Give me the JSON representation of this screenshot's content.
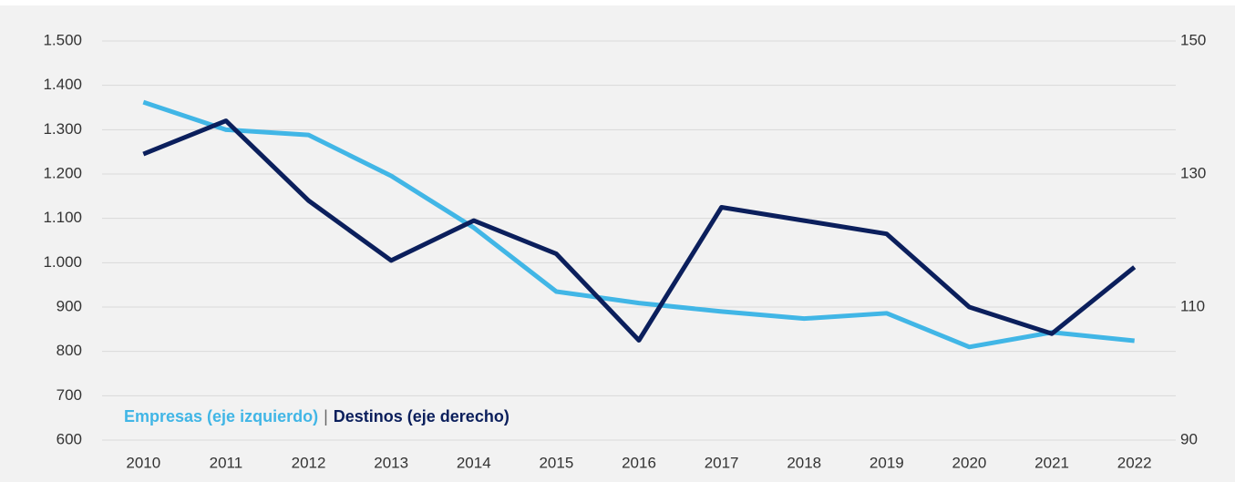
{
  "chart_data": {
    "type": "line",
    "categories": [
      "2010",
      "2011",
      "2012",
      "2013",
      "2014",
      "2015",
      "2016",
      "2017",
      "2018",
      "2019",
      "2020",
      "2021",
      "2022"
    ],
    "series": [
      {
        "name": "Empresas (eje izquierdo)",
        "color": "#41b6e6",
        "axis": "y",
        "values": [
          1362,
          1300,
          1288,
          1196,
          1079,
          935,
          909,
          890,
          874,
          886,
          810,
          843,
          824
        ]
      },
      {
        "name": "Destinos (eje derecho)",
        "color": "#0b1f5c",
        "axis": "y2",
        "values": [
          133,
          138,
          126,
          117,
          123,
          118,
          105,
          125,
          123,
          121,
          110,
          106,
          116
        ]
      }
    ],
    "legend_separator": "|",
    "ylim": [
      600,
      1500
    ],
    "yticks": [
      600,
      700,
      800,
      900,
      {
        "value": 1000,
        "label": "1.000"
      },
      {
        "value": 1100,
        "label": "1.100"
      },
      {
        "value": 1200,
        "label": "1.200"
      },
      {
        "value": 1300,
        "label": "1.300"
      },
      {
        "value": 1400,
        "label": "1.400"
      },
      {
        "value": 1500,
        "label": "1.500"
      }
    ],
    "y2lim": [
      90,
      150
    ],
    "y2ticks": [
      90,
      110,
      130,
      150
    ],
    "grid": true,
    "legend": "lower left"
  }
}
